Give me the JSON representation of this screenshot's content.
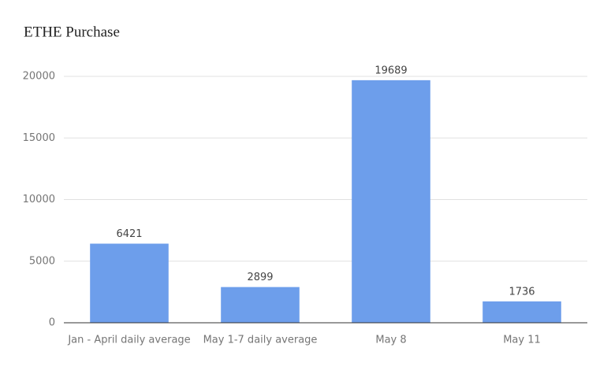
{
  "chart_data": {
    "type": "bar",
    "title": "ETHE Purchase",
    "categories": [
      "Jan - April daily average",
      "May 1-7 daily average",
      "May 8",
      "May 11"
    ],
    "values": [
      6421,
      2899,
      19689,
      1736
    ],
    "color": "#6d9eeb",
    "ylim": [
      0,
      20000
    ],
    "yticks": [
      0,
      5000,
      10000,
      15000,
      20000
    ],
    "grid": true
  }
}
